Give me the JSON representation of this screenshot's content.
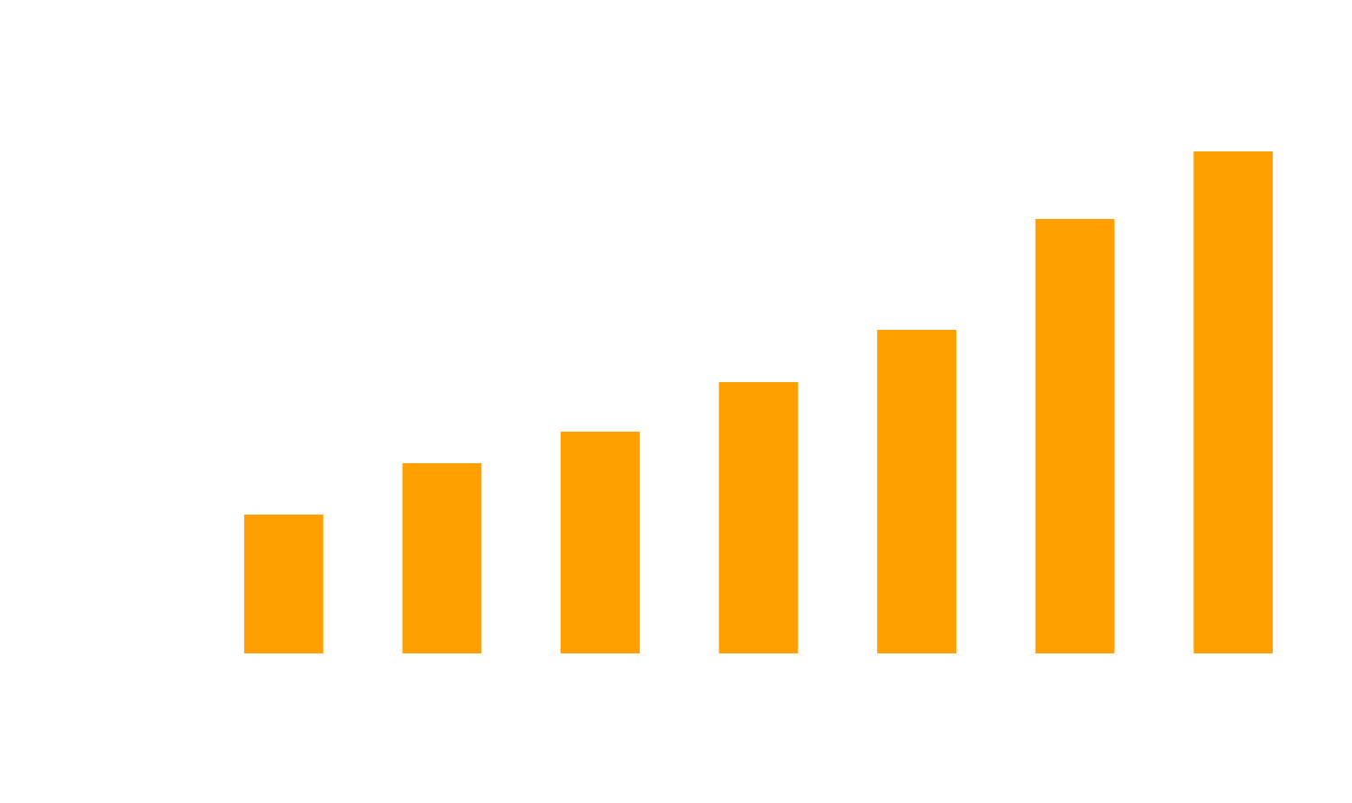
{
  "chart_data": {
    "type": "bar",
    "categories": [
      null,
      null,
      null,
      null,
      null,
      null,
      null
    ],
    "values": [
      154,
      211,
      246,
      301,
      359,
      482,
      557
    ],
    "color": "#ff9f00"
  }
}
